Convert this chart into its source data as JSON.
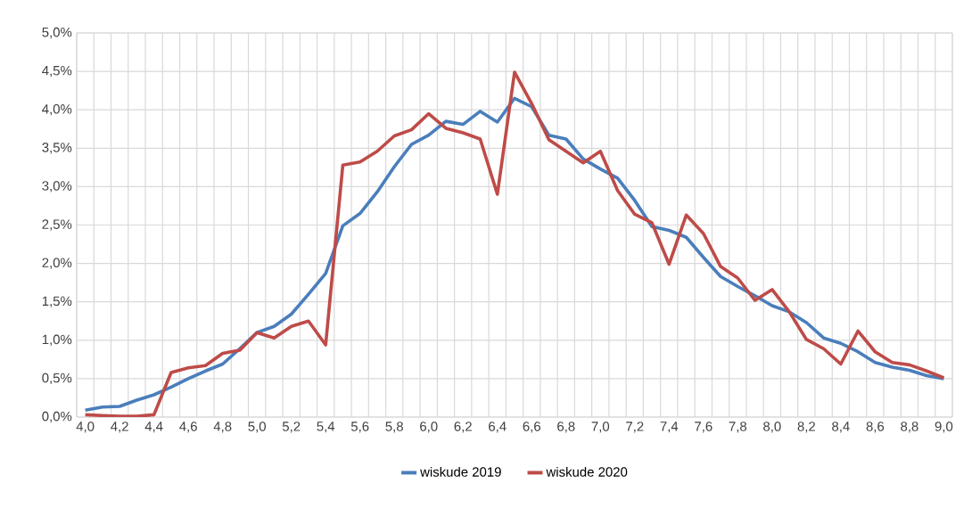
{
  "chart_data": {
    "type": "line",
    "categories": [
      "4,0",
      null,
      "4,2",
      null,
      "4,4",
      null,
      "4,6",
      null,
      "4,8",
      null,
      "5,0",
      null,
      "5,2",
      null,
      "5,4",
      null,
      "5,6",
      null,
      "5,8",
      null,
      "6,0",
      null,
      "6,2",
      null,
      "6,4",
      null,
      "6,6",
      null,
      "6,8",
      null,
      "7,0",
      null,
      "7,2",
      null,
      "7,4",
      null,
      "7,6",
      null,
      "7,8",
      null,
      "8,0",
      null,
      "8,2",
      null,
      "8,4",
      null,
      "8,6",
      null,
      "8,8",
      null,
      "9,0"
    ],
    "series": [
      {
        "name": "wiskude 2019",
        "color": "#4a7ebb",
        "values": [
          0.09,
          0.13,
          0.14,
          0.22,
          0.29,
          0.39,
          0.5,
          0.6,
          0.69,
          0.89,
          1.1,
          1.18,
          1.34,
          1.6,
          1.87,
          2.49,
          2.65,
          2.93,
          3.26,
          3.55,
          3.67,
          3.85,
          3.81,
          3.98,
          3.84,
          4.15,
          4.04,
          3.67,
          3.62,
          3.36,
          3.23,
          3.11,
          2.82,
          2.48,
          2.43,
          2.34,
          2.08,
          1.83,
          1.7,
          1.58,
          1.45,
          1.37,
          1.23,
          1.03,
          0.96,
          0.85,
          0.71,
          0.65,
          0.61,
          0.54,
          0.5
        ]
      },
      {
        "name": "wiskude 2020",
        "color": "#be4b48",
        "values": [
          0.03,
          0.02,
          0.01,
          0.01,
          0.03,
          0.58,
          0.64,
          0.67,
          0.83,
          0.87,
          1.1,
          1.03,
          1.18,
          1.25,
          0.94,
          3.28,
          3.32,
          3.46,
          3.66,
          3.74,
          3.95,
          3.76,
          3.7,
          3.62,
          2.9,
          4.49,
          4.08,
          3.61,
          3.46,
          3.31,
          3.46,
          2.95,
          2.64,
          2.53,
          1.99,
          2.63,
          2.39,
          1.96,
          1.81,
          1.52,
          1.66,
          1.37,
          1.01,
          0.89,
          0.69,
          1.12,
          0.85,
          0.71,
          0.68,
          0.6,
          0.51
        ]
      }
    ],
    "ylim": [
      0,
      5
    ],
    "yticks": [
      {
        "value": 0,
        "label": "0,0%"
      },
      {
        "value": 0.5,
        "label": "0,5%"
      },
      {
        "value": 1,
        "label": "1,0%"
      },
      {
        "value": 1.5,
        "label": "1,5%"
      },
      {
        "value": 2,
        "label": "2,0%"
      },
      {
        "value": 2.5,
        "label": "2,5%"
      },
      {
        "value": 3,
        "label": "3,0%"
      },
      {
        "value": 3.5,
        "label": "3,5%"
      },
      {
        "value": 4,
        "label": "4,0%"
      },
      {
        "value": 4.5,
        "label": "4,5%"
      },
      {
        "value": 5,
        "label": "5,0%"
      }
    ],
    "grid": true,
    "legend": "bottom",
    "marker": "none",
    "line_style": "solid"
  }
}
